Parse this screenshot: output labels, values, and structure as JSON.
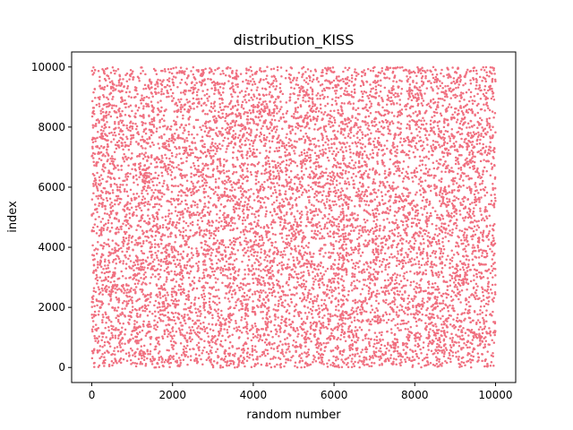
{
  "chart_data": {
    "type": "scatter",
    "title": "distribution_KISS",
    "xlabel": "random number",
    "ylabel": "index",
    "xlim": [
      -500,
      10500
    ],
    "ylim": [
      -500,
      10500
    ],
    "xticks": [
      0,
      2000,
      4000,
      6000,
      8000,
      10000
    ],
    "yticks": [
      0,
      2000,
      4000,
      6000,
      8000,
      10000
    ],
    "grid": false,
    "series": [
      {
        "color": "#f07080",
        "marker": "dot",
        "point_count": 10000,
        "distribution": "uniform",
        "x_range": [
          0,
          10000
        ],
        "y_range": [
          0,
          10000
        ]
      }
    ]
  }
}
